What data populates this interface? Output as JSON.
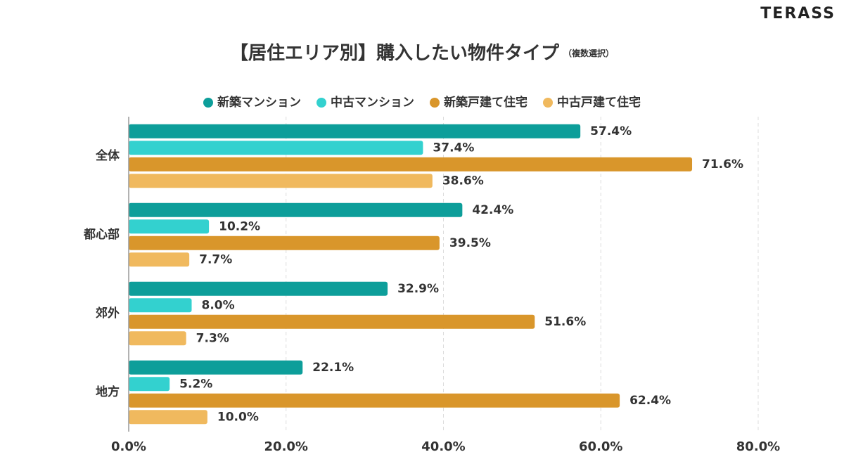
{
  "chart_data": {
    "type": "bar",
    "orientation": "horizontal",
    "brand": "TERASS",
    "title": "【居住エリア別】購入したい物件タイプ",
    "subtitle": "（複数選択）",
    "categories": [
      "全体",
      "都心部",
      "郊外",
      "地方"
    ],
    "series": [
      {
        "name": "新築マンション",
        "color": "#0d9e9a",
        "values": [
          57.4,
          42.4,
          32.9,
          22.1
        ],
        "value_labels": [
          "57.4%",
          "42.4%",
          "32.9%",
          "22.1%"
        ]
      },
      {
        "name": "中古マンション",
        "color": "#33d1cf",
        "values": [
          37.4,
          10.2,
          8,
          5.2
        ],
        "value_labels": [
          "37.4%",
          "10.2%",
          "8.0%",
          "5.2%"
        ]
      },
      {
        "name": "新築戸建て住宅",
        "color": "#d9962b",
        "values": [
          71.6,
          39.5,
          51.6,
          62.4
        ],
        "value_labels": [
          "71.6%",
          "39.5%",
          "51.6%",
          "62.4%"
        ]
      },
      {
        "name": "中古戸建て住宅",
        "color": "#f0b95e",
        "values": [
          38.6,
          7.7,
          7.3,
          10
        ],
        "value_labels": [
          "38.6%",
          "7.7%",
          "7.3%",
          "10.0%"
        ]
      }
    ],
    "xlim": [
      0,
      80
    ],
    "xticks": [
      {
        "value": 0,
        "label": "0.0%"
      },
      {
        "value": 20,
        "label": "20.0%"
      },
      {
        "value": 40,
        "label": "40.0%"
      },
      {
        "value": 60,
        "label": "60.0%"
      },
      {
        "value": 80,
        "label": "80.0%"
      }
    ],
    "grid": true
  }
}
